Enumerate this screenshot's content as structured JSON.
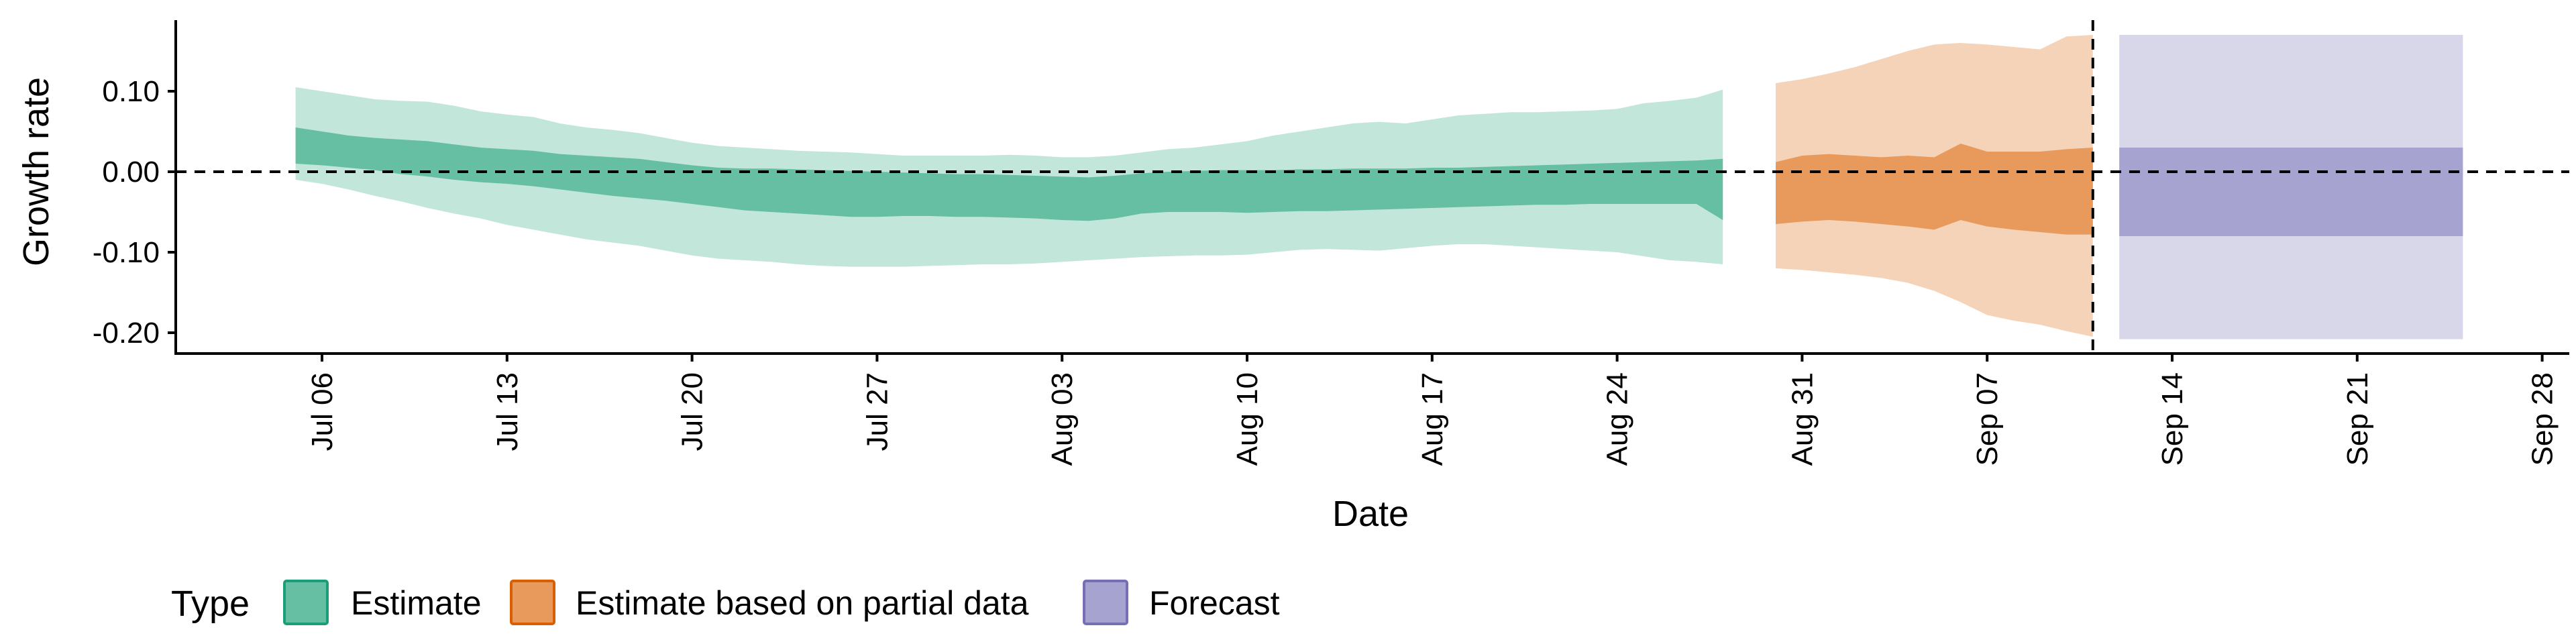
{
  "chart_data": {
    "type": "area",
    "xlabel": "Date",
    "ylabel": "Growth rate",
    "ylim": [
      -0.225,
      0.185
    ],
    "y_ticks": [
      {
        "value": 0.1,
        "label": "0.10"
      },
      {
        "value": 0.0,
        "label": "0.00"
      },
      {
        "value": -0.1,
        "label": "-0.10"
      },
      {
        "value": -0.2,
        "label": "-0.20"
      }
    ],
    "xlim": [
      "2020-07-01",
      "2020-09-28"
    ],
    "x_ticks": [
      {
        "date": "2020-07-06",
        "label": "Jul 06"
      },
      {
        "date": "2020-07-13",
        "label": "Jul 13"
      },
      {
        "date": "2020-07-20",
        "label": "Jul 20"
      },
      {
        "date": "2020-07-27",
        "label": "Jul 27"
      },
      {
        "date": "2020-08-03",
        "label": "Aug 03"
      },
      {
        "date": "2020-08-10",
        "label": "Aug 10"
      },
      {
        "date": "2020-08-17",
        "label": "Aug 17"
      },
      {
        "date": "2020-08-24",
        "label": "Aug 24"
      },
      {
        "date": "2020-08-31",
        "label": "Aug 31"
      },
      {
        "date": "2020-09-07",
        "label": "Sep 07"
      },
      {
        "date": "2020-09-14",
        "label": "Sep 14"
      },
      {
        "date": "2020-09-21",
        "label": "Sep 21"
      },
      {
        "date": "2020-09-28",
        "label": "Sep 28"
      }
    ],
    "hline_y": 0,
    "vline_date": "2020-09-11",
    "grid": false,
    "legend": {
      "title": "Type",
      "position": "bottom",
      "entries": [
        "Estimate",
        "Estimate based on partial data",
        "Forecast"
      ]
    },
    "series": [
      {
        "name": "Estimate",
        "fill_color": "#66bfa3",
        "outer_color": "#c2e6da",
        "border_color": "#1b9e77",
        "points": [
          {
            "x": "2020-07-05",
            "lo90": -0.01,
            "lo50": 0.01,
            "hi50": 0.055,
            "hi90": 0.105
          },
          {
            "x": "2020-07-06",
            "lo90": -0.015,
            "lo50": 0.008,
            "hi50": 0.05,
            "hi90": 0.1
          },
          {
            "x": "2020-07-07",
            "lo90": -0.022,
            "lo50": 0.005,
            "hi50": 0.045,
            "hi90": 0.095
          },
          {
            "x": "2020-07-08",
            "lo90": -0.03,
            "lo50": 0.002,
            "hi50": 0.042,
            "hi90": 0.09
          },
          {
            "x": "2020-07-09",
            "lo90": -0.037,
            "lo50": -0.003,
            "hi50": 0.04,
            "hi90": 0.088
          },
          {
            "x": "2020-07-10",
            "lo90": -0.045,
            "lo50": -0.006,
            "hi50": 0.038,
            "hi90": 0.087
          },
          {
            "x": "2020-07-11",
            "lo90": -0.052,
            "lo50": -0.01,
            "hi50": 0.034,
            "hi90": 0.082
          },
          {
            "x": "2020-07-12",
            "lo90": -0.058,
            "lo50": -0.013,
            "hi50": 0.03,
            "hi90": 0.075
          },
          {
            "x": "2020-07-13",
            "lo90": -0.066,
            "lo50": -0.015,
            "hi50": 0.028,
            "hi90": 0.071
          },
          {
            "x": "2020-07-14",
            "lo90": -0.072,
            "lo50": -0.018,
            "hi50": 0.026,
            "hi90": 0.068
          },
          {
            "x": "2020-07-15",
            "lo90": -0.078,
            "lo50": -0.022,
            "hi50": 0.022,
            "hi90": 0.06
          },
          {
            "x": "2020-07-16",
            "lo90": -0.084,
            "lo50": -0.026,
            "hi50": 0.02,
            "hi90": 0.055
          },
          {
            "x": "2020-07-17",
            "lo90": -0.088,
            "lo50": -0.03,
            "hi50": 0.018,
            "hi90": 0.052
          },
          {
            "x": "2020-07-18",
            "lo90": -0.092,
            "lo50": -0.033,
            "hi50": 0.016,
            "hi90": 0.048
          },
          {
            "x": "2020-07-19",
            "lo90": -0.098,
            "lo50": -0.036,
            "hi50": 0.012,
            "hi90": 0.042
          },
          {
            "x": "2020-07-20",
            "lo90": -0.104,
            "lo50": -0.04,
            "hi50": 0.008,
            "hi90": 0.036
          },
          {
            "x": "2020-07-21",
            "lo90": -0.108,
            "lo50": -0.044,
            "hi50": 0.005,
            "hi90": 0.032
          },
          {
            "x": "2020-07-22",
            "lo90": -0.11,
            "lo50": -0.048,
            "hi50": 0.004,
            "hi90": 0.03
          },
          {
            "x": "2020-07-23",
            "lo90": -0.112,
            "lo50": -0.05,
            "hi50": 0.004,
            "hi90": 0.028
          },
          {
            "x": "2020-07-24",
            "lo90": -0.115,
            "lo50": -0.052,
            "hi50": 0.003,
            "hi90": 0.026
          },
          {
            "x": "2020-07-25",
            "lo90": -0.117,
            "lo50": -0.054,
            "hi50": 0.002,
            "hi90": 0.025
          },
          {
            "x": "2020-07-26",
            "lo90": -0.118,
            "lo50": -0.056,
            "hi50": 0.001,
            "hi90": 0.024
          },
          {
            "x": "2020-07-27",
            "lo90": -0.118,
            "lo50": -0.056,
            "hi50": 0.0,
            "hi90": 0.022
          },
          {
            "x": "2020-07-28",
            "lo90": -0.118,
            "lo50": -0.055,
            "hi50": -0.001,
            "hi90": 0.02
          },
          {
            "x": "2020-07-29",
            "lo90": -0.117,
            "lo50": -0.055,
            "hi50": -0.002,
            "hi90": 0.02
          },
          {
            "x": "2020-07-30",
            "lo90": -0.116,
            "lo50": -0.056,
            "hi50": -0.003,
            "hi90": 0.02
          },
          {
            "x": "2020-07-31",
            "lo90": -0.115,
            "lo50": -0.056,
            "hi50": -0.003,
            "hi90": 0.02
          },
          {
            "x": "2020-08-01",
            "lo90": -0.115,
            "lo50": -0.057,
            "hi50": -0.004,
            "hi90": 0.021
          },
          {
            "x": "2020-08-02",
            "lo90": -0.114,
            "lo50": -0.058,
            "hi50": -0.005,
            "hi90": 0.02
          },
          {
            "x": "2020-08-03",
            "lo90": -0.112,
            "lo50": -0.06,
            "hi50": -0.006,
            "hi90": 0.018
          },
          {
            "x": "2020-08-04",
            "lo90": -0.11,
            "lo50": -0.061,
            "hi50": -0.007,
            "hi90": 0.018
          },
          {
            "x": "2020-08-05",
            "lo90": -0.108,
            "lo50": -0.058,
            "hi50": -0.005,
            "hi90": 0.02
          },
          {
            "x": "2020-08-06",
            "lo90": -0.106,
            "lo50": -0.052,
            "hi50": -0.002,
            "hi90": 0.024
          },
          {
            "x": "2020-08-07",
            "lo90": -0.105,
            "lo50": -0.05,
            "hi50": 0.0,
            "hi90": 0.028
          },
          {
            "x": "2020-08-08",
            "lo90": -0.104,
            "lo50": -0.05,
            "hi50": 0.001,
            "hi90": 0.03
          },
          {
            "x": "2020-08-09",
            "lo90": -0.104,
            "lo50": -0.05,
            "hi50": 0.002,
            "hi90": 0.034
          },
          {
            "x": "2020-08-10",
            "lo90": -0.103,
            "lo50": -0.051,
            "hi50": 0.002,
            "hi90": 0.038
          },
          {
            "x": "2020-08-11",
            "lo90": -0.1,
            "lo50": -0.05,
            "hi50": 0.002,
            "hi90": 0.045
          },
          {
            "x": "2020-08-12",
            "lo90": -0.097,
            "lo50": -0.049,
            "hi50": 0.003,
            "hi90": 0.05
          },
          {
            "x": "2020-08-13",
            "lo90": -0.096,
            "lo50": -0.049,
            "hi50": 0.003,
            "hi90": 0.055
          },
          {
            "x": "2020-08-14",
            "lo90": -0.097,
            "lo50": -0.048,
            "hi50": 0.004,
            "hi90": 0.06
          },
          {
            "x": "2020-08-15",
            "lo90": -0.098,
            "lo50": -0.047,
            "hi50": 0.004,
            "hi90": 0.062
          },
          {
            "x": "2020-08-16",
            "lo90": -0.095,
            "lo50": -0.046,
            "hi50": 0.004,
            "hi90": 0.06
          },
          {
            "x": "2020-08-17",
            "lo90": -0.092,
            "lo50": -0.045,
            "hi50": 0.005,
            "hi90": 0.065
          },
          {
            "x": "2020-08-18",
            "lo90": -0.09,
            "lo50": -0.044,
            "hi50": 0.005,
            "hi90": 0.07
          },
          {
            "x": "2020-08-19",
            "lo90": -0.09,
            "lo50": -0.043,
            "hi50": 0.006,
            "hi90": 0.072
          },
          {
            "x": "2020-08-20",
            "lo90": -0.092,
            "lo50": -0.042,
            "hi50": 0.007,
            "hi90": 0.074
          },
          {
            "x": "2020-08-21",
            "lo90": -0.094,
            "lo50": -0.041,
            "hi50": 0.008,
            "hi90": 0.074
          },
          {
            "x": "2020-08-22",
            "lo90": -0.096,
            "lo50": -0.041,
            "hi50": 0.009,
            "hi90": 0.075
          },
          {
            "x": "2020-08-23",
            "lo90": -0.098,
            "lo50": -0.04,
            "hi50": 0.01,
            "hi90": 0.076
          },
          {
            "x": "2020-08-24",
            "lo90": -0.1,
            "lo50": -0.04,
            "hi50": 0.011,
            "hi90": 0.078
          },
          {
            "x": "2020-08-25",
            "lo90": -0.105,
            "lo50": -0.04,
            "hi50": 0.012,
            "hi90": 0.085
          },
          {
            "x": "2020-08-26",
            "lo90": -0.11,
            "lo50": -0.04,
            "hi50": 0.013,
            "hi90": 0.088
          },
          {
            "x": "2020-08-27",
            "lo90": -0.112,
            "lo50": -0.04,
            "hi50": 0.014,
            "hi90": 0.092
          },
          {
            "x": "2020-08-28",
            "lo90": -0.115,
            "lo50": -0.06,
            "hi50": 0.016,
            "hi90": 0.102
          }
        ]
      },
      {
        "name": "Estimate based on partial data",
        "fill_color": "#e89a5c",
        "outer_color": "#f5d3b8",
        "border_color": "#d95f02",
        "points": [
          {
            "x": "2020-08-30",
            "lo90": -0.12,
            "lo50": -0.065,
            "hi50": 0.012,
            "hi90": 0.11
          },
          {
            "x": "2020-08-31",
            "lo90": -0.122,
            "lo50": -0.062,
            "hi50": 0.02,
            "hi90": 0.115
          },
          {
            "x": "2020-09-01",
            "lo90": -0.125,
            "lo50": -0.06,
            "hi50": 0.022,
            "hi90": 0.122
          },
          {
            "x": "2020-09-02",
            "lo90": -0.128,
            "lo50": -0.062,
            "hi50": 0.02,
            "hi90": 0.13
          },
          {
            "x": "2020-09-03",
            "lo90": -0.132,
            "lo50": -0.065,
            "hi50": 0.018,
            "hi90": 0.14
          },
          {
            "x": "2020-09-04",
            "lo90": -0.138,
            "lo50": -0.068,
            "hi50": 0.02,
            "hi90": 0.15
          },
          {
            "x": "2020-09-05",
            "lo90": -0.148,
            "lo50": -0.072,
            "hi50": 0.018,
            "hi90": 0.158
          },
          {
            "x": "2020-09-06",
            "lo90": -0.162,
            "lo50": -0.06,
            "hi50": 0.035,
            "hi90": 0.16
          },
          {
            "x": "2020-09-07",
            "lo90": -0.178,
            "lo50": -0.068,
            "hi50": 0.025,
            "hi90": 0.158
          },
          {
            "x": "2020-09-08",
            "lo90": -0.185,
            "lo50": -0.072,
            "hi50": 0.025,
            "hi90": 0.155
          },
          {
            "x": "2020-09-09",
            "lo90": -0.19,
            "lo50": -0.075,
            "hi50": 0.025,
            "hi90": 0.152
          },
          {
            "x": "2020-09-10",
            "lo90": -0.198,
            "lo50": -0.078,
            "hi50": 0.028,
            "hi90": 0.168
          },
          {
            "x": "2020-09-11",
            "lo90": -0.205,
            "lo50": -0.078,
            "hi50": 0.03,
            "hi90": 0.17
          }
        ]
      },
      {
        "name": "Forecast",
        "fill_color": "#a6a3d0",
        "outer_color": "#d8d7ea",
        "border_color": "#7570b3",
        "points": [
          {
            "x": "2020-09-12",
            "lo90": -0.208,
            "lo50": -0.08,
            "hi50": 0.03,
            "hi90": 0.17
          },
          {
            "x": "2020-09-25",
            "lo90": -0.208,
            "lo50": -0.08,
            "hi50": 0.03,
            "hi90": 0.17
          }
        ]
      }
    ]
  }
}
